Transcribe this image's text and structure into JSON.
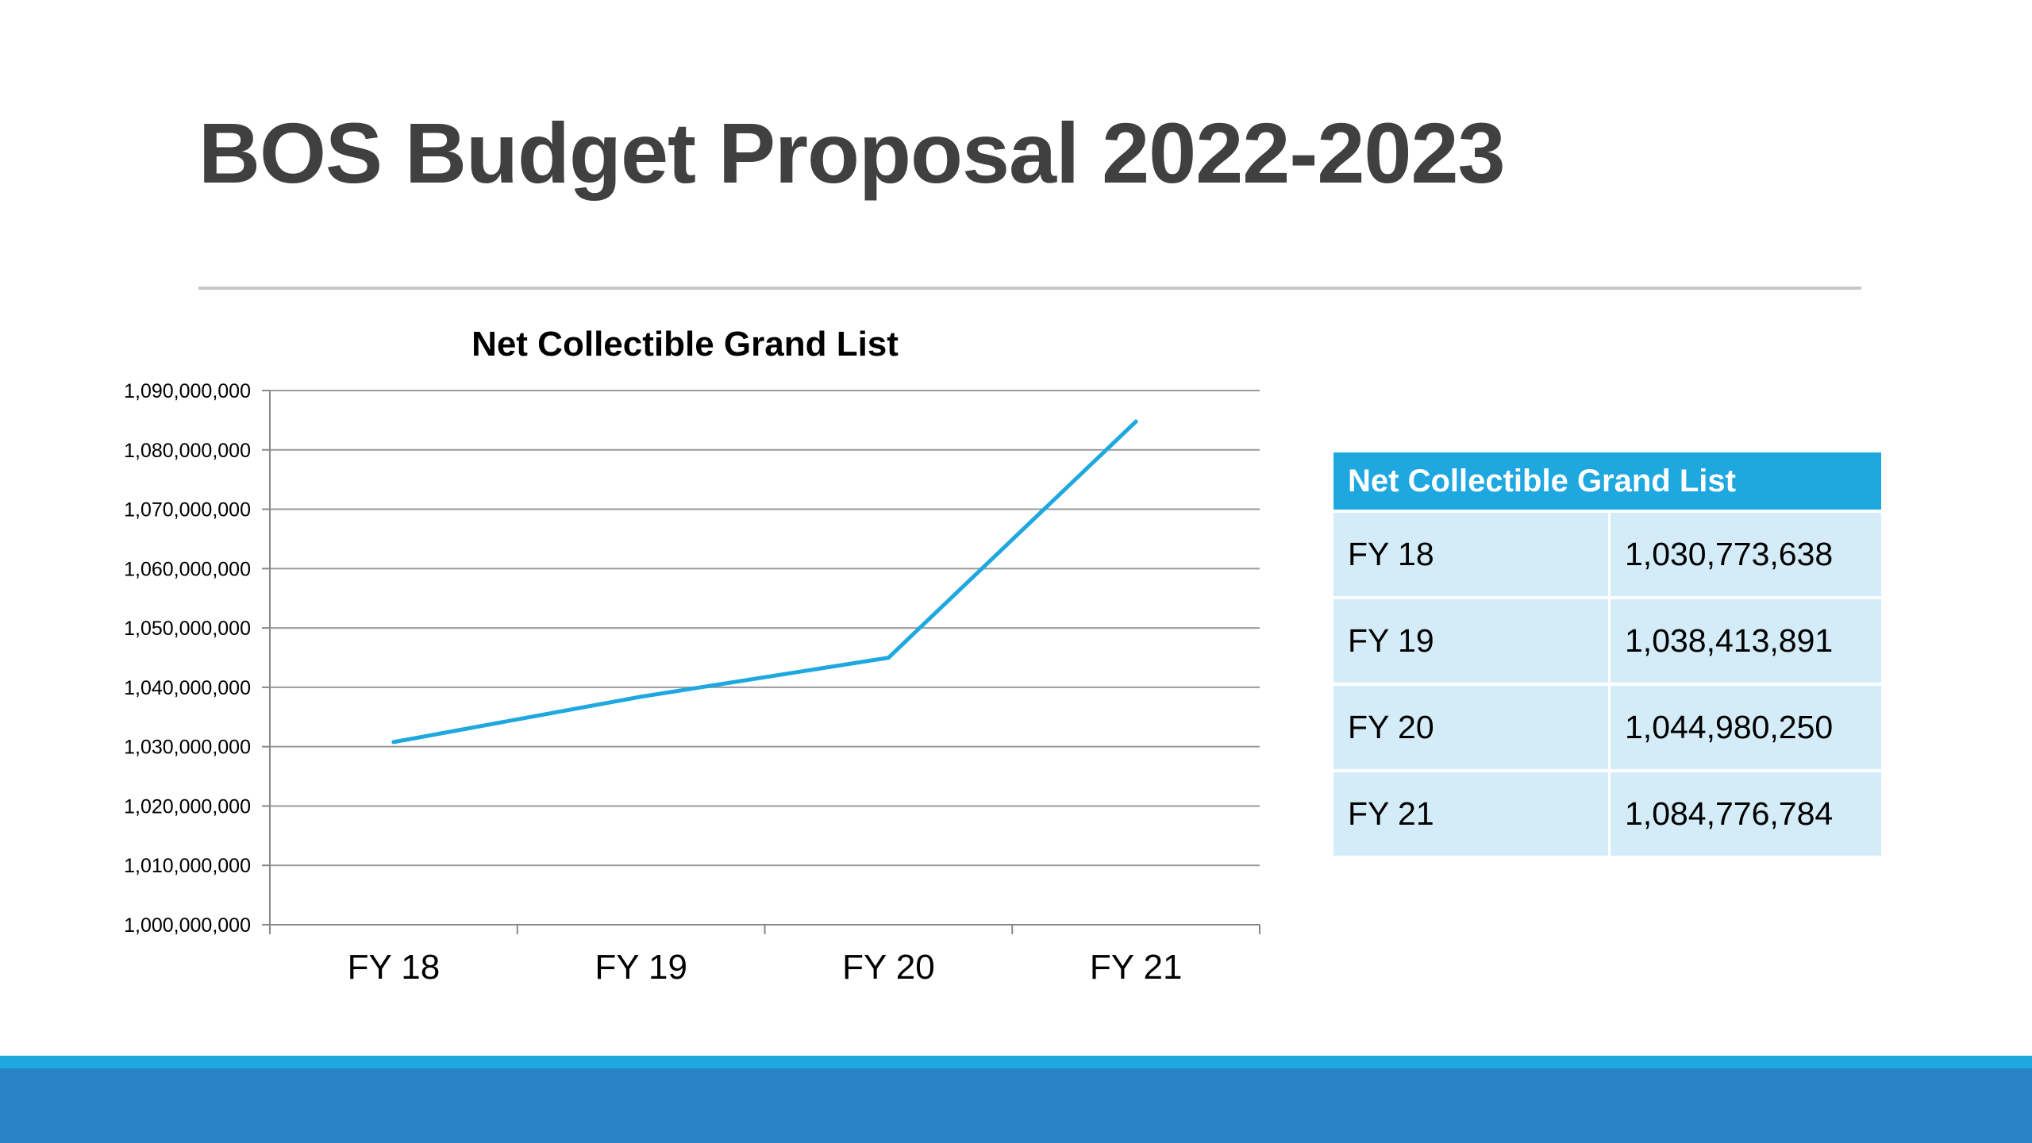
{
  "slide": {
    "title": "BOS Budget Proposal 2022-2023"
  },
  "colors": {
    "line": "#1fa8e0",
    "table_header": "#1fa8e0",
    "table_cell": "#d3ecf7",
    "footer_light": "#1fa8e0",
    "footer_dark": "#2783c6",
    "title": "#404040"
  },
  "chart_data": {
    "type": "line",
    "title": "Net Collectible Grand List",
    "xlabel": "",
    "ylabel": "",
    "categories": [
      "FY 18",
      "FY 19",
      "FY 20",
      "FY 21"
    ],
    "series": [
      {
        "values": [
          1030773638,
          1038413891,
          1044980250,
          1084776784
        ]
      }
    ],
    "ylim": [
      1000000000,
      1090000000
    ],
    "ytick_labels": [
      "1,000,000,000",
      "1,010,000,000",
      "1,020,000,000",
      "1,030,000,000",
      "1,040,000,000",
      "1,050,000,000",
      "1,060,000,000",
      "1,070,000,000",
      "1,080,000,000",
      "1,090,000,000"
    ],
    "grid": true,
    "legend": "none"
  },
  "table": {
    "header": "Net Collectible Grand List",
    "rows": [
      {
        "label": "FY 18",
        "value": "1,030,773,638"
      },
      {
        "label": "FY 19",
        "value": "1,038,413,891"
      },
      {
        "label": "FY 20",
        "value": "1,044,980,250"
      },
      {
        "label": "FY 21",
        "value": "1,084,776,784"
      }
    ]
  }
}
